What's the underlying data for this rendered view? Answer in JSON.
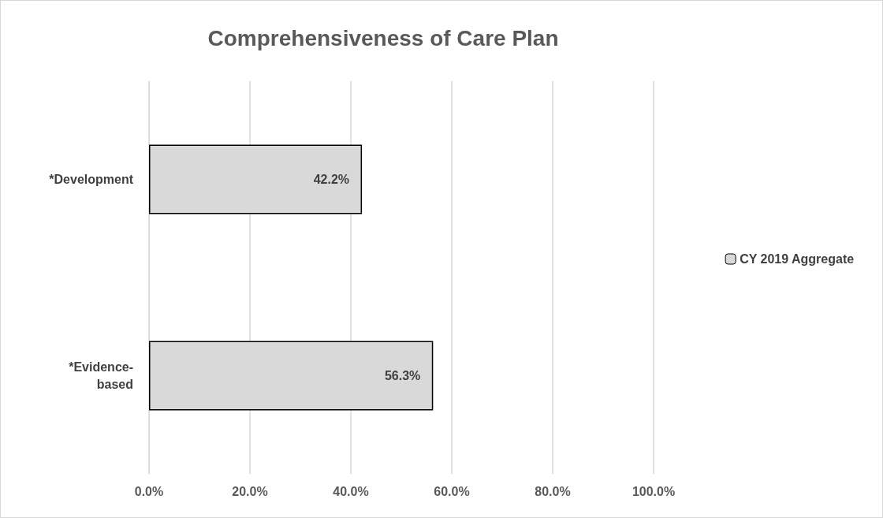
{
  "chart_data": {
    "type": "bar",
    "title": "Comprehensiveness of Care Plan",
    "orientation": "horizontal",
    "categories": [
      "*Development",
      "*Evidence-based"
    ],
    "series": [
      {
        "name": "CY 2019 Aggregate",
        "color": "#d9d9d9",
        "values": [
          42.2,
          56.3
        ],
        "value_labels": [
          "42.2%",
          "56.3%"
        ]
      }
    ],
    "xlim": [
      0,
      100
    ],
    "xticks": [
      {
        "value": 0,
        "label": "0.0%"
      },
      {
        "value": 20,
        "label": "20.0%"
      },
      {
        "value": 40,
        "label": "40.0%"
      },
      {
        "value": 60,
        "label": "60.0%"
      },
      {
        "value": 80,
        "label": "80.0%"
      },
      {
        "value": 100,
        "label": "100.0%"
      }
    ],
    "grid": "x",
    "legend": "right"
  }
}
